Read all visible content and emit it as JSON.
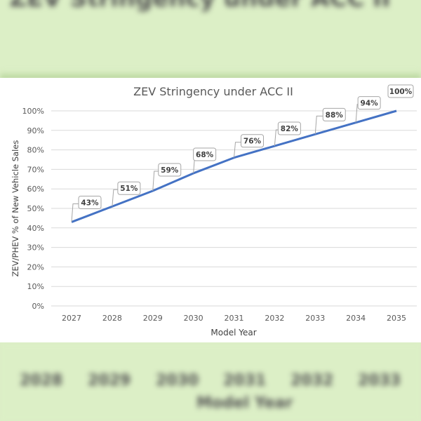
{
  "chart_data": {
    "type": "line",
    "title": "ZEV Stringency under ACC II",
    "xlabel": "Model Year",
    "ylabel": "ZEV/PHEV % of New Vehicle Sales",
    "categories": [
      "2027",
      "2028",
      "2029",
      "2030",
      "2031",
      "2032",
      "2033",
      "2034",
      "2035"
    ],
    "values": [
      43,
      51,
      59,
      68,
      76,
      82,
      88,
      94,
      100
    ],
    "data_labels": [
      "43%",
      "51%",
      "59%",
      "68%",
      "76%",
      "82%",
      "88%",
      "94%",
      "100%"
    ],
    "ylim": [
      0,
      100
    ],
    "yticks": [
      "0%",
      "10%",
      "20%",
      "30%",
      "40%",
      "50%",
      "60%",
      "70%",
      "80%",
      "90%",
      "100%"
    ],
    "grid": true,
    "legend": "none",
    "line_color": "#4472c4",
    "background_color": "#dcefc6"
  }
}
